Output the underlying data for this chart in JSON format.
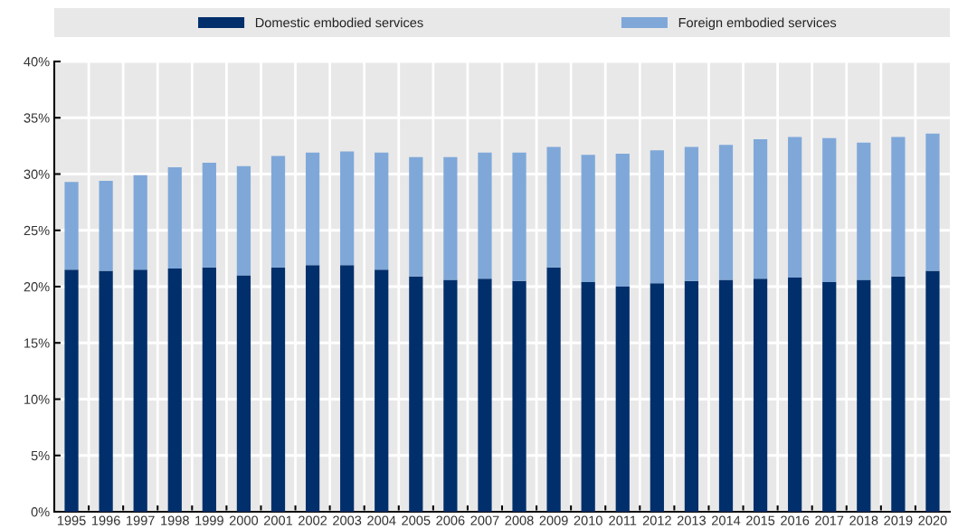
{
  "chart_data": {
    "type": "bar",
    "stacked": true,
    "legend": "top",
    "grid": true,
    "categories": [
      "1995",
      "1996",
      "1997",
      "1998",
      "1999",
      "2000",
      "2001",
      "2002",
      "2003",
      "2004",
      "2005",
      "2006",
      "2007",
      "2008",
      "2009",
      "2010",
      "2011",
      "2012",
      "2013",
      "2014",
      "2015",
      "2016",
      "2017",
      "2018",
      "2019",
      "2020"
    ],
    "series": [
      {
        "name": "Domestic embodied services",
        "color": "#002f6c",
        "values": [
          21.5,
          21.4,
          21.5,
          21.6,
          21.7,
          21.0,
          21.7,
          21.9,
          21.9,
          21.5,
          20.9,
          20.6,
          20.7,
          20.5,
          21.7,
          20.4,
          20.0,
          20.3,
          20.5,
          20.6,
          20.7,
          20.8,
          20.4,
          20.6,
          20.9,
          21.4
        ]
      },
      {
        "name": "Foreign embodied services",
        "color": "#7fa8d9",
        "values": [
          7.8,
          8.0,
          8.4,
          9.0,
          9.3,
          9.7,
          9.9,
          10.0,
          10.1,
          10.4,
          10.6,
          10.9,
          11.2,
          11.4,
          10.7,
          11.3,
          11.8,
          11.8,
          11.9,
          12.0,
          12.4,
          12.5,
          12.8,
          12.2,
          12.4,
          12.2
        ]
      }
    ],
    "ylim": [
      0,
      40
    ],
    "yticks": [
      {
        "value": 0,
        "label": "0%"
      },
      {
        "value": 5,
        "label": "5%"
      },
      {
        "value": 10,
        "label": "10%"
      },
      {
        "value": 15,
        "label": "15%"
      },
      {
        "value": 20,
        "label": "20%"
      },
      {
        "value": 25,
        "label": "25%"
      },
      {
        "value": 30,
        "label": "30%"
      },
      {
        "value": 35,
        "label": "35%"
      },
      {
        "value": 40,
        "label": "40%"
      }
    ]
  }
}
